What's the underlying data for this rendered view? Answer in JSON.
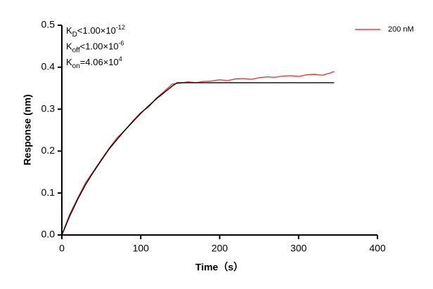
{
  "chart_data": {
    "type": "line",
    "xlabel": "Time（s）",
    "ylabel": "Response (nm)",
    "xlim": [
      0,
      400
    ],
    "xticks": [
      0,
      100,
      200,
      300,
      400
    ],
    "ylim": [
      0,
      0.5
    ],
    "yticks": [
      {
        "value": 0,
        "label": "0.0"
      },
      0.1,
      0.2,
      0.3,
      0.4,
      0.5
    ],
    "annotations": [
      {
        "main": "K",
        "sub": "D",
        "text": "<1.00×10",
        "sup": "-12"
      },
      {
        "main": "K",
        "sub": "off",
        "text": "<1.00×10",
        "sup": "-6"
      },
      {
        "main": "K",
        "sub": "on",
        "text": "=4.06×10",
        "sup": "4"
      }
    ],
    "legend": "upper right",
    "series": [
      {
        "name": "200 nM",
        "color": "#e04040",
        "x": [
          0,
          10,
          20,
          30,
          40,
          50,
          60,
          70,
          80,
          90,
          100,
          110,
          120,
          130,
          140,
          150,
          160,
          170,
          180,
          190,
          200,
          210,
          220,
          230,
          240,
          250,
          260,
          270,
          280,
          290,
          300,
          310,
          320,
          330,
          340,
          345
        ],
        "values": [
          0,
          0.05,
          0.088,
          0.125,
          0.152,
          0.18,
          0.207,
          0.232,
          0.25,
          0.272,
          0.292,
          0.305,
          0.327,
          0.343,
          0.36,
          0.362,
          0.365,
          0.363,
          0.366,
          0.367,
          0.37,
          0.368,
          0.372,
          0.373,
          0.371,
          0.375,
          0.377,
          0.376,
          0.379,
          0.38,
          0.378,
          0.382,
          0.383,
          0.381,
          0.386,
          0.39
        ]
      },
      {
        "color": "#000000",
        "x": [
          0,
          10,
          20,
          30,
          40,
          50,
          60,
          70,
          80,
          90,
          100,
          110,
          120,
          130,
          140,
          146,
          200,
          250,
          300,
          345
        ],
        "values": [
          0,
          0.045,
          0.085,
          0.12,
          0.15,
          0.178,
          0.205,
          0.228,
          0.25,
          0.27,
          0.29,
          0.308,
          0.325,
          0.34,
          0.355,
          0.363,
          0.363,
          0.363,
          0.363,
          0.363
        ]
      }
    ]
  }
}
